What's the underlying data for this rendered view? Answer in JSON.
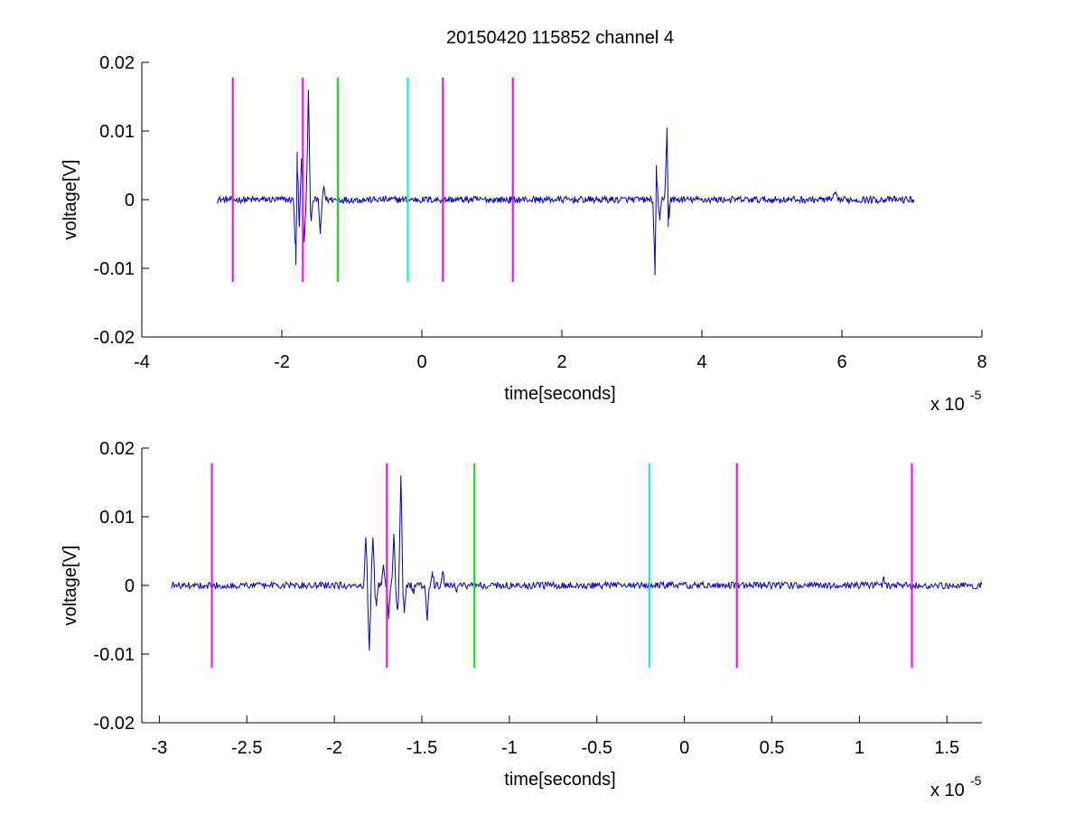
{
  "figure_title": "20150420 115852 channel 4",
  "colors": {
    "trace": "#0000cc",
    "magenta": "#ff00ff",
    "green": "#00ee00",
    "cyan": "#00eeee"
  },
  "chart_data": [
    {
      "type": "line",
      "title": "20150420 115852 channel 4",
      "xlabel": "time[seconds]",
      "ylabel": "voltage[V]",
      "x_multiplier_label": "x 10",
      "x_multiplier_exponent": "-5",
      "xlim": [
        -4,
        8
      ],
      "ylim": [
        -0.02,
        0.02
      ],
      "x_ticks": [
        -4,
        -2,
        0,
        2,
        4,
        6,
        8
      ],
      "x_tick_labels": [
        "-4",
        "-2",
        "0",
        "2",
        "4",
        "6",
        "8"
      ],
      "y_ticks": [
        -0.02,
        -0.01,
        0,
        0.01,
        0.02
      ],
      "y_tick_labels": [
        "-0.02",
        "-0.01",
        "0",
        "0.01",
        "0.02"
      ],
      "grid": false,
      "series": [
        {
          "color": "#0000cc",
          "x_range": [
            -2.93,
            7.03
          ],
          "baseline_noise": 0.0005,
          "bursts": [
            {
              "x": -1.8,
              "y": -0.0095
            },
            {
              "x": -1.78,
              "y": 0.007
            },
            {
              "x": -1.75,
              "y": -0.004
            },
            {
              "x": -1.72,
              "y": 0.006
            },
            {
              "x": -1.68,
              "y": -0.006
            },
            {
              "x": -1.62,
              "y": 0.016
            },
            {
              "x": -1.58,
              "y": -0.003
            },
            {
              "x": -1.45,
              "y": -0.005
            },
            {
              "x": -1.4,
              "y": 0.002
            },
            {
              "x": 3.33,
              "y": -0.011
            },
            {
              "x": 3.35,
              "y": 0.005
            },
            {
              "x": 3.4,
              "y": -0.003
            },
            {
              "x": 3.5,
              "y": 0.0105
            },
            {
              "x": 3.52,
              "y": -0.004
            },
            {
              "x": 5.9,
              "y": 0.001
            }
          ]
        }
      ],
      "markers": [
        {
          "x": -2.7,
          "color": "#ff00ff",
          "ymin": -0.012,
          "ymax": 0.0178
        },
        {
          "x": -1.7,
          "color": "#ff00ff",
          "ymin": -0.012,
          "ymax": 0.0178
        },
        {
          "x": -1.2,
          "color": "#00ee00",
          "ymin": -0.012,
          "ymax": 0.0178
        },
        {
          "x": -0.2,
          "color": "#00eeee",
          "ymin": -0.012,
          "ymax": 0.0178
        },
        {
          "x": 0.3,
          "color": "#ff00ff",
          "ymin": -0.012,
          "ymax": 0.0178
        },
        {
          "x": 1.3,
          "color": "#ff00ff",
          "ymin": -0.012,
          "ymax": 0.0178
        }
      ]
    },
    {
      "type": "line",
      "title": "",
      "xlabel": "time[seconds]",
      "ylabel": "voltage[V]",
      "x_multiplier_label": "x 10",
      "x_multiplier_exponent": "-5",
      "xlim": [
        -3.1,
        1.7
      ],
      "ylim": [
        -0.02,
        0.02
      ],
      "x_ticks": [
        -3,
        -2.5,
        -2,
        -1.5,
        -1,
        -0.5,
        0,
        0.5,
        1,
        1.5
      ],
      "x_tick_labels": [
        "-3",
        "-2.5",
        "-2",
        "-1.5",
        "-1",
        "-0.5",
        "0",
        "0.5",
        "1",
        "1.5"
      ],
      "y_ticks": [
        -0.02,
        -0.01,
        0,
        0.01,
        0.02
      ],
      "y_tick_labels": [
        "-0.02",
        "-0.01",
        "0",
        "0.01",
        "0.02"
      ],
      "grid": false,
      "series": [
        {
          "color": "#0000cc",
          "x_range": [
            -2.93,
            1.7
          ],
          "baseline_noise": 0.0005,
          "bursts": [
            {
              "x": -1.82,
              "y": 0.007
            },
            {
              "x": -1.8,
              "y": -0.0095
            },
            {
              "x": -1.78,
              "y": 0.007
            },
            {
              "x": -1.76,
              "y": -0.003
            },
            {
              "x": -1.72,
              "y": 0.003
            },
            {
              "x": -1.69,
              "y": -0.0045
            },
            {
              "x": -1.66,
              "y": 0.0075
            },
            {
              "x": -1.64,
              "y": -0.0035
            },
            {
              "x": -1.62,
              "y": 0.016
            },
            {
              "x": -1.6,
              "y": -0.004
            },
            {
              "x": -1.55,
              "y": -0.001
            },
            {
              "x": -1.47,
              "y": -0.005
            },
            {
              "x": -1.44,
              "y": 0.002
            },
            {
              "x": -1.38,
              "y": 0.002
            },
            {
              "x": -1.3,
              "y": -0.001
            },
            {
              "x": 1.14,
              "y": 0.001
            }
          ]
        }
      ],
      "markers": [
        {
          "x": -2.7,
          "color": "#ff00ff",
          "ymin": -0.012,
          "ymax": 0.0178
        },
        {
          "x": -1.7,
          "color": "#ff00ff",
          "ymin": -0.012,
          "ymax": 0.0178
        },
        {
          "x": -1.2,
          "color": "#00ee00",
          "ymin": -0.012,
          "ymax": 0.0178
        },
        {
          "x": -0.2,
          "color": "#00eeee",
          "ymin": -0.012,
          "ymax": 0.0178
        },
        {
          "x": 0.3,
          "color": "#ff00ff",
          "ymin": -0.012,
          "ymax": 0.0178
        },
        {
          "x": 1.3,
          "color": "#ff00ff",
          "ymin": -0.012,
          "ymax": 0.0178
        }
      ]
    }
  ]
}
